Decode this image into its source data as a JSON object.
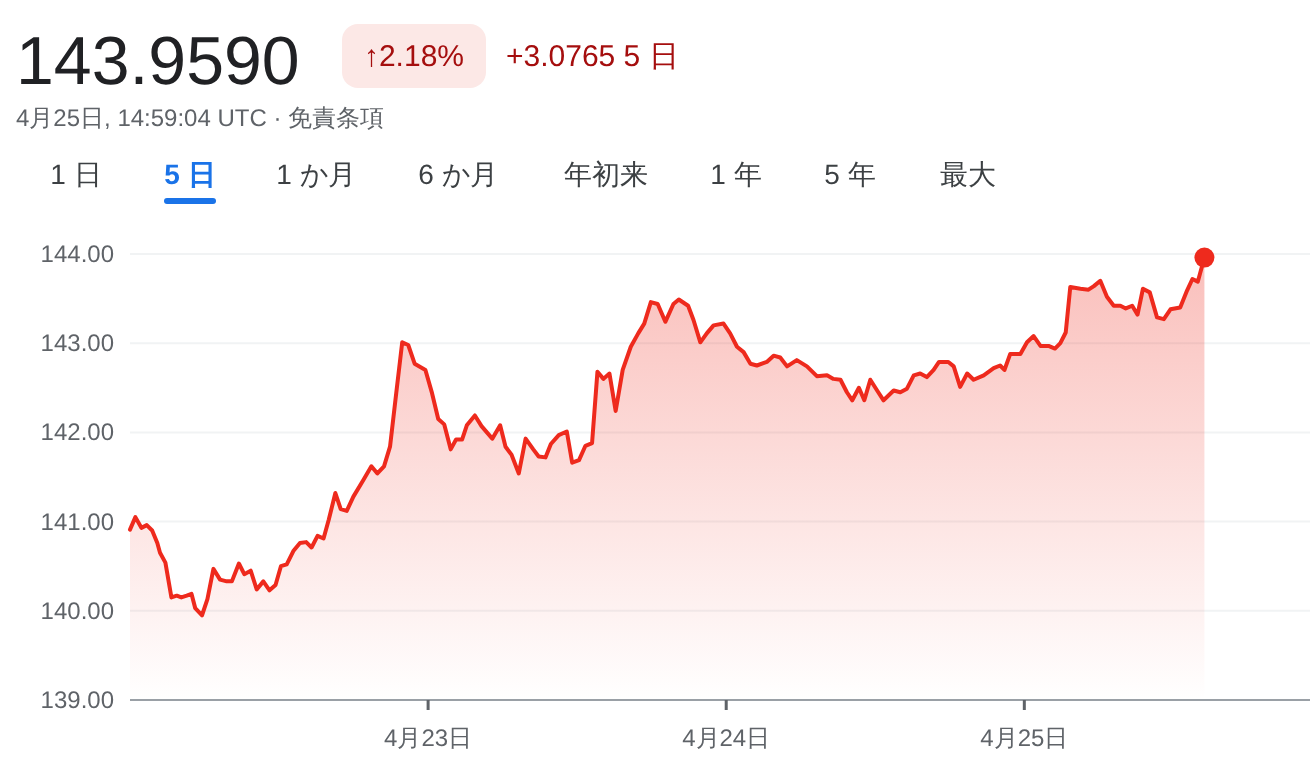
{
  "chart_data": {
    "type": "area",
    "title": "143.9590",
    "subtitle": "4月25日, 14:59:04 UTC · 免責条項",
    "annotations": [
      "↑2.18%",
      "+3.0765 5 日",
      "1 日",
      "5 日",
      "1 か月",
      "6 か月",
      "年初来",
      "1 年",
      "5 年",
      "最大"
    ],
    "xlim": [
      "--04-22T00:00",
      "--04-25T23:00"
    ],
    "xticks": [
      {
        "value": "--04-23",
        "label": "4月23日"
      },
      {
        "value": "--04-24",
        "label": "4月24日"
      },
      {
        "value": "--04-25",
        "label": "4月25日"
      }
    ],
    "ylim": [
      139,
      144
    ],
    "yticks": [
      {
        "value": 139,
        "label": "139.00"
      },
      {
        "value": 140,
        "label": "140.00"
      },
      {
        "value": 141,
        "label": "141.00"
      },
      {
        "value": 142,
        "label": "142.00"
      },
      {
        "value": 143,
        "label": "143.00"
      },
      {
        "value": 144,
        "label": "144.00"
      }
    ],
    "grid": "y",
    "series": [
      {
        "color": "#ee2a1d",
        "x": [
          "--04-22T00:00",
          "--04-22T00:26",
          "--04-22T00:55",
          "--04-22T01:21",
          "--04-22T01:47",
          "--04-22T02:12",
          "--04-22T02:25",
          "--04-22T02:51",
          "--04-22T03:20",
          "--04-22T03:46",
          "--04-22T04:08",
          "--04-22T04:34",
          "--04-22T04:57",
          "--04-22T05:15",
          "--04-22T05:48",
          "--04-22T06:14",
          "--04-22T06:43",
          "--04-22T07:15",
          "--04-22T07:47",
          "--04-22T08:12",
          "--04-22T08:46",
          "--04-22T09:12",
          "--04-22T09:43",
          "--04-22T10:12",
          "--04-22T10:44",
          "--04-22T11:14",
          "--04-22T11:43",
          "--04-22T12:09",
          "--04-22T12:37",
          "--04-22T13:09",
          "--04-22T13:41",
          "--04-22T14:11",
          "--04-22T14:37",
          "--04-22T15:06",
          "--04-22T15:35",
          "--04-22T16:00",
          "--04-22T16:32",
          "--04-22T16:58",
          "--04-22T17:27",
          "--04-22T17:59",
          "--04-22T18:48",
          "--04-22T19:26",
          "--04-22T19:55",
          "--04-22T20:27",
          "--04-22T20:56",
          "--04-22T21:26",
          "--04-22T21:55",
          "--04-22T22:24",
          "--04-22T22:55",
          "--04-22T23:47",
          "--04-23T00:19",
          "--04-23T00:49",
          "--04-23T01:18",
          "--04-23T01:49",
          "--04-23T02:15",
          "--04-23T02:44",
          "--04-23T03:07",
          "--04-23T03:46",
          "--04-23T04:18",
          "--04-23T05:10",
          "--04-23T05:48",
          "--04-23T06:14",
          "--04-23T06:43",
          "--04-23T07:18",
          "--04-23T07:51",
          "--04-23T08:28",
          "--04-23T08:54",
          "--04-23T09:27",
          "--04-23T09:53",
          "--04-23T10:31",
          "--04-23T11:10",
          "--04-23T11:36",
          "--04-23T12:09",
          "--04-23T12:40",
          "--04-23T13:12",
          "--04-23T13:38",
          "--04-23T14:07",
          "--04-23T14:36",
          "--04-23T15:06",
          "--04-23T15:40",
          "--04-23T16:19",
          "--04-23T16:55",
          "--04-23T17:24",
          "--04-23T17:56",
          "--04-23T18:29",
          "--04-23T19:06",
          "--04-23T19:45",
          "--04-23T20:11",
          "--04-23T20:56",
          "--04-23T21:22",
          "--04-23T21:55",
          "--04-23T22:26",
          "--04-23T22:59",
          "--04-23T23:47",
          "--04-24T00:19",
          "--04-24T00:52",
          "--04-24T01:24",
          "--04-24T01:57",
          "--04-24T02:28",
          "--04-24T03:16",
          "--04-24T03:49",
          "--04-24T04:21",
          "--04-24T04:54",
          "--04-24T05:41",
          "--04-24T06:30",
          "--04-24T07:18",
          "--04-24T08:07",
          "--04-24T08:38",
          "--04-24T09:12",
          "--04-24T09:43",
          "--04-24T10:09",
          "--04-24T10:41",
          "--04-24T11:07",
          "--04-24T11:36",
          "--04-24T12:09",
          "--04-24T12:40",
          "--04-24T13:29",
          "--04-24T14:01",
          "--04-24T14:33",
          "--04-24T15:06",
          "--04-24T15:37",
          "--04-24T16:09",
          "--04-24T16:42",
          "--04-24T17:08",
          "--04-24T17:53",
          "--04-24T18:19",
          "--04-24T18:50",
          "--04-24T19:24",
          "--04-24T19:55",
          "--04-24T20:44",
          "--04-24T21:32",
          "--04-24T22:03",
          "--04-24T22:24",
          "--04-24T22:52",
          "--04-24T23:41",
          "--04-25T00:13",
          "--04-25T00:45",
          "--04-25T01:18",
          "--04-25T01:57",
          "--04-25T02:28",
          "--04-25T02:54",
          "--04-25T03:20",
          "--04-25T03:42",
          "--04-25T04:31",
          "--04-25T05:10",
          "--04-25T05:36",
          "--04-25T06:07",
          "--04-25T06:39",
          "--04-25T07:12",
          "--04-25T07:44",
          "--04-25T08:10",
          "--04-25T08:41",
          "--04-25T09:07",
          "--04-25T09:33",
          "--04-25T10:06",
          "--04-25T10:41",
          "--04-25T11:14",
          "--04-25T11:46",
          "--04-25T12:33",
          "--04-25T13:06",
          "--04-25T13:32",
          "--04-25T13:58",
          "--04-25T14:30"
        ],
        "values": [
          140.91,
          141.05,
          140.93,
          140.96,
          140.9,
          140.76,
          140.65,
          140.54,
          140.15,
          140.17,
          140.15,
          140.17,
          140.19,
          140.03,
          139.95,
          140.13,
          140.47,
          140.35,
          140.33,
          140.33,
          140.53,
          140.41,
          140.45,
          140.24,
          140.33,
          140.23,
          140.29,
          140.5,
          140.52,
          140.67,
          140.76,
          140.77,
          140.71,
          140.84,
          140.81,
          141.02,
          141.32,
          141.14,
          141.12,
          141.28,
          141.47,
          141.62,
          141.54,
          141.62,
          141.84,
          142.44,
          143.01,
          142.98,
          142.77,
          142.7,
          142.44,
          142.15,
          142.09,
          141.81,
          141.92,
          141.92,
          142.08,
          142.19,
          142.07,
          141.93,
          142.08,
          141.84,
          141.75,
          141.54,
          141.93,
          141.81,
          141.73,
          141.72,
          141.87,
          141.97,
          142.01,
          141.66,
          141.69,
          141.85,
          141.88,
          142.68,
          142.6,
          142.66,
          142.24,
          142.7,
          142.96,
          143.11,
          143.22,
          143.46,
          143.44,
          143.24,
          143.44,
          143.49,
          143.42,
          143.26,
          143.01,
          143.11,
          143.2,
          143.22,
          143.11,
          142.96,
          142.9,
          142.77,
          142.75,
          142.79,
          142.86,
          142.84,
          142.74,
          142.81,
          142.74,
          142.63,
          142.64,
          142.6,
          142.59,
          142.45,
          142.36,
          142.5,
          142.36,
          142.59,
          142.47,
          142.36,
          142.47,
          142.45,
          142.49,
          142.64,
          142.66,
          142.62,
          142.7,
          142.79,
          142.79,
          142.74,
          142.51,
          142.66,
          142.59,
          142.64,
          142.72,
          142.75,
          142.7,
          142.88,
          142.88,
          143.01,
          143.08,
          142.97,
          142.97,
          142.94,
          143.0,
          143.12,
          143.63,
          143.61,
          143.6,
          143.64,
          143.7,
          143.52,
          143.42,
          143.42,
          143.39,
          143.42,
          143.32,
          143.61,
          143.57,
          143.29,
          143.27,
          143.38,
          143.4,
          143.59,
          143.72,
          143.69,
          143.96
        ]
      },
      {
        "type": "scatter",
        "color": "#ee2a1d",
        "x": [
          "--04-25T14:30"
        ],
        "values": [
          143.96
        ]
      }
    ]
  }
}
